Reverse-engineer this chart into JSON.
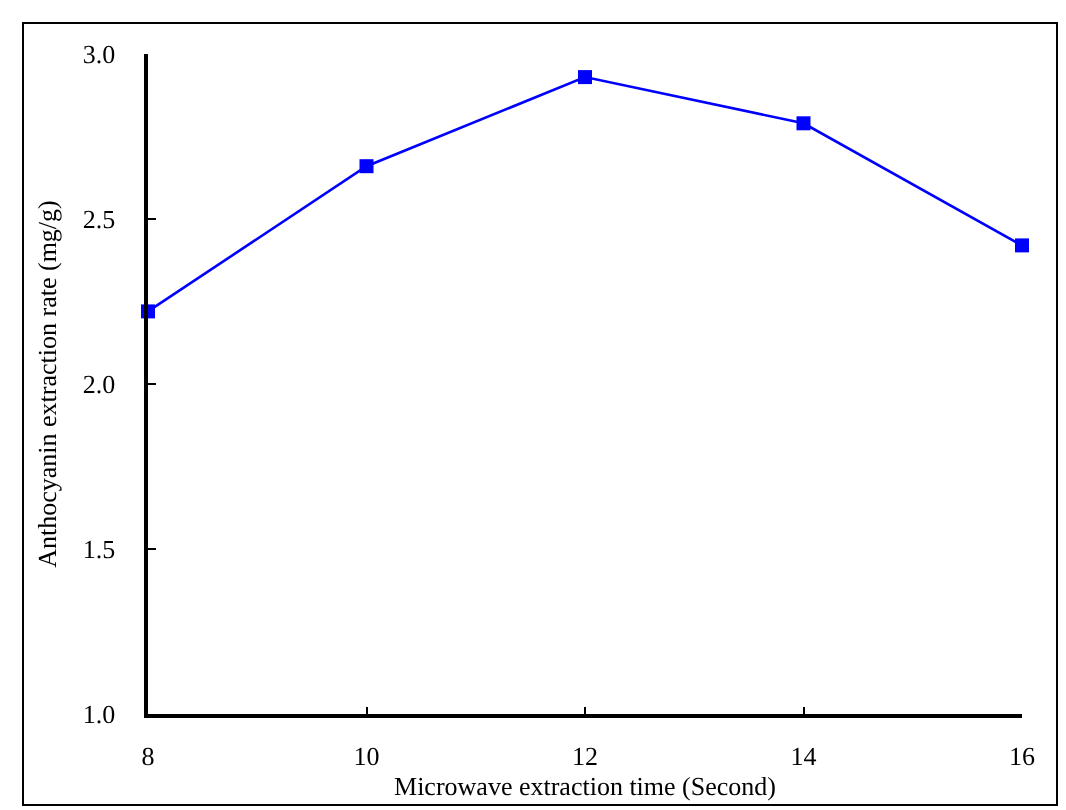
{
  "chart_data": {
    "type": "line",
    "xlabel": "Microwave extraction time (Second)",
    "ylabel": "Anthocyanin extraction rate (mg/g)",
    "x": [
      8,
      10,
      12,
      14,
      16
    ],
    "series": [
      {
        "color": "#0000ff",
        "values": [
          2.22,
          2.66,
          2.93,
          2.79,
          2.42
        ]
      }
    ],
    "xlim": [
      8,
      16
    ],
    "xticks": [
      8,
      10,
      12,
      14,
      16
    ],
    "ylim": [
      1.0,
      3.0
    ],
    "yticks": [
      {
        "value": 1.0,
        "label": "1.0"
      },
      {
        "value": 1.5,
        "label": "1.5"
      },
      {
        "value": 2.0,
        "label": "2.0"
      },
      {
        "value": 2.5,
        "label": "2.5"
      },
      {
        "value": 3.0,
        "label": "3.0"
      }
    ],
    "grid": false,
    "marker": "square",
    "line_style": "solid"
  }
}
